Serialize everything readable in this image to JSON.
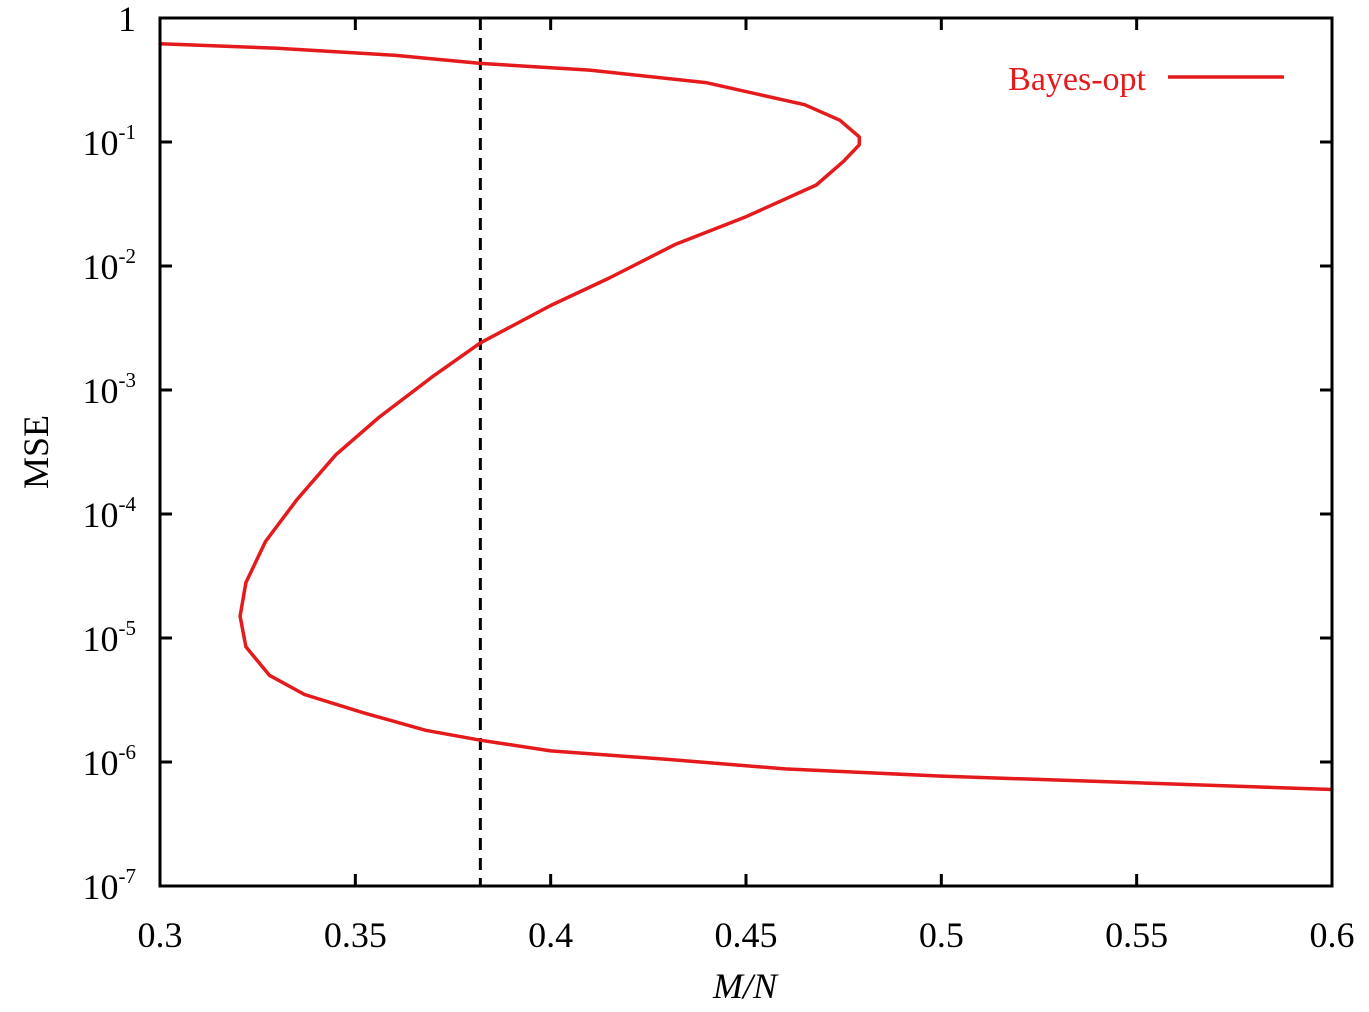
{
  "chart_data": {
    "type": "line",
    "xlabel": "M/N",
    "ylabel": "MSE",
    "xlim": [
      0.3,
      0.6
    ],
    "ylim": [
      1e-07,
      1
    ],
    "yscale": "log",
    "grid": false,
    "legend_position": "top-right",
    "x_ticks": [
      "0.3",
      "0.35",
      "0.4",
      "0.45",
      "0.5",
      "0.55",
      "0.6"
    ],
    "y_ticks": [
      {
        "value": 1,
        "base": "1",
        "exp": ""
      },
      {
        "value": 0.1,
        "base": "10",
        "exp": "-1"
      },
      {
        "value": 0.01,
        "base": "10",
        "exp": "-2"
      },
      {
        "value": 0.001,
        "base": "10",
        "exp": "-3"
      },
      {
        "value": 0.0001,
        "base": "10",
        "exp": "-4"
      },
      {
        "value": 1e-05,
        "base": "10",
        "exp": "-5"
      },
      {
        "value": 1e-06,
        "base": "10",
        "exp": "-6"
      },
      {
        "value": 1e-07,
        "base": "10",
        "exp": "-7"
      }
    ],
    "series": [
      {
        "name": "Bayes-opt",
        "color": "#e41a1c",
        "points": [
          [
            0.3,
            0.62
          ],
          [
            0.33,
            0.57
          ],
          [
            0.36,
            0.5
          ],
          [
            0.382,
            0.43
          ],
          [
            0.41,
            0.38
          ],
          [
            0.44,
            0.3
          ],
          [
            0.465,
            0.2
          ],
          [
            0.474,
            0.15
          ],
          [
            0.479,
            0.11
          ],
          [
            0.479,
            0.095
          ],
          [
            0.475,
            0.07
          ],
          [
            0.468,
            0.045
          ],
          [
            0.45,
            0.025
          ],
          [
            0.432,
            0.015
          ],
          [
            0.415,
            0.008
          ],
          [
            0.4,
            0.0048
          ],
          [
            0.382,
            0.0024
          ],
          [
            0.37,
            0.0013
          ],
          [
            0.356,
            0.0006
          ],
          [
            0.345,
            0.0003
          ],
          [
            0.335,
            0.00013
          ],
          [
            0.327,
            6e-05
          ],
          [
            0.322,
            2.8e-05
          ],
          [
            0.3205,
            1.5e-05
          ],
          [
            0.322,
            8.5e-06
          ],
          [
            0.328,
            5e-06
          ],
          [
            0.337,
            3.5e-06
          ],
          [
            0.352,
            2.5e-06
          ],
          [
            0.368,
            1.8e-06
          ],
          [
            0.382,
            1.5e-06
          ],
          [
            0.4,
            1.23e-06
          ],
          [
            0.43,
            1.05e-06
          ],
          [
            0.46,
            8.8e-07
          ],
          [
            0.5,
            7.7e-07
          ],
          [
            0.55,
            6.8e-07
          ],
          [
            0.6,
            6e-07
          ]
        ]
      }
    ],
    "vertical_line": {
      "x": 0.382,
      "style": "dashed",
      "color": "#000000"
    }
  }
}
